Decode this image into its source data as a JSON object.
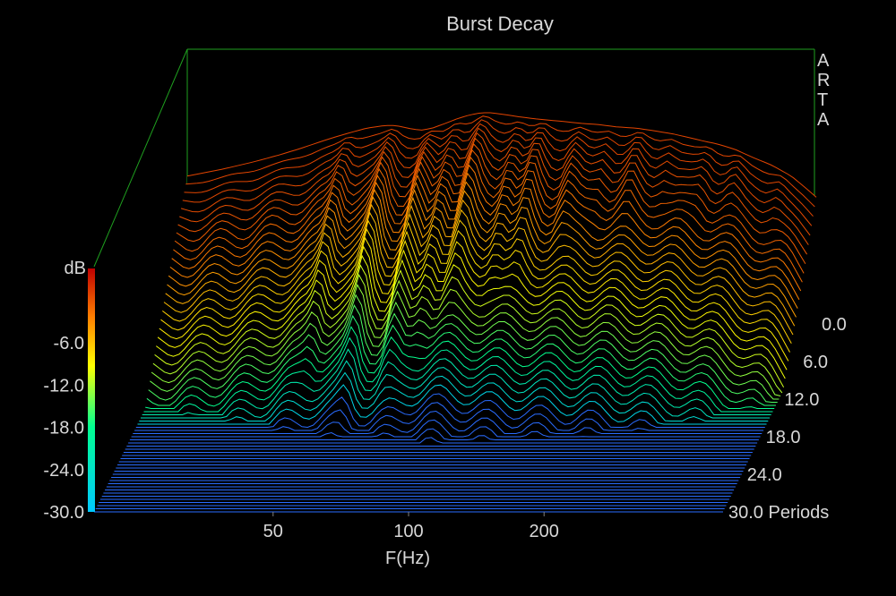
{
  "chart_data": {
    "type": "waterfall",
    "title": "Burst Decay",
    "watermark": "ARTA",
    "xlabel": "F(Hz)",
    "x_scale": "log",
    "xlim": [
      20,
      500
    ],
    "x_ticks": [
      {
        "value": 50,
        "label": "50"
      },
      {
        "value": 100,
        "label": "100"
      },
      {
        "value": 200,
        "label": "200"
      }
    ],
    "z_axis": {
      "label": "dB",
      "ylim": [
        -30,
        0
      ],
      "ticks": [
        {
          "value": -6,
          "label": "-6.0"
        },
        {
          "value": -12,
          "label": "-12.0"
        },
        {
          "value": -18,
          "label": "-18.0"
        },
        {
          "value": -24,
          "label": "-24.0"
        },
        {
          "value": -30,
          "label": "-30.0"
        }
      ]
    },
    "time_axis": {
      "unit": "Periods",
      "range": [
        0,
        30
      ],
      "ticks": [
        {
          "value": 0,
          "label": "0.0"
        },
        {
          "value": 6,
          "label": "6.0"
        },
        {
          "value": 12,
          "label": "12.0"
        },
        {
          "value": 18,
          "label": "18.0"
        },
        {
          "value": 24,
          "label": "24.0"
        },
        {
          "value": 30,
          "label": "30.0 Periods"
        }
      ],
      "slice_step": 0.5
    },
    "profile_at_0_periods": {
      "freq_hz": [
        20,
        24,
        28,
        32,
        36,
        40,
        45,
        50,
        55,
        58,
        62,
        66,
        70,
        75,
        80,
        85,
        90,
        95,
        100,
        110,
        120,
        130,
        140,
        150,
        165,
        180,
        200,
        220,
        240,
        260,
        280,
        300,
        330,
        360,
        400,
        440,
        480,
        500
      ],
      "level_db": [
        -9,
        -8,
        -7,
        -6,
        -5,
        -4,
        -3,
        -2.2,
        -1.8,
        -1.8,
        -2.2,
        -2.5,
        -2.2,
        -1.5,
        -0.8,
        -0.3,
        0,
        0,
        -0.2,
        -0.6,
        -0.9,
        -1.1,
        -1.3,
        -1.5,
        -1.7,
        -2,
        -2.2,
        -2.6,
        -3,
        -3.5,
        -4,
        -4.4,
        -5.2,
        -6.3,
        -7.5,
        -9,
        -11,
        -12
      ]
    },
    "resonances": [
      {
        "freq_hz": 46,
        "decay_periods": 15
      },
      {
        "freq_hz": 58,
        "decay_periods": 18
      },
      {
        "freq_hz": 70,
        "decay_periods": 16
      },
      {
        "freq_hz": 80,
        "decay_periods": 14
      },
      {
        "freq_hz": 92,
        "decay_periods": 12
      },
      {
        "freq_hz": 110,
        "decay_periods": 11
      },
      {
        "freq_hz": 125,
        "decay_periods": 10
      },
      {
        "freq_hz": 150,
        "decay_periods": 8
      },
      {
        "freq_hz": 175,
        "decay_periods": 6
      },
      {
        "freq_hz": 205,
        "decay_periods": 6
      },
      {
        "freq_hz": 240,
        "decay_periods": 5
      },
      {
        "freq_hz": 290,
        "decay_periods": 5
      },
      {
        "freq_hz": 340,
        "decay_periods": 4
      },
      {
        "freq_hz": 420,
        "decay_periods": 4
      }
    ],
    "colorscale": [
      "#00c8ff",
      "#00ff90",
      "#ffff00",
      "#ff8000",
      "#c00000"
    ],
    "floor_color": "#2a6cff",
    "frame_color": "#1fa01f"
  }
}
